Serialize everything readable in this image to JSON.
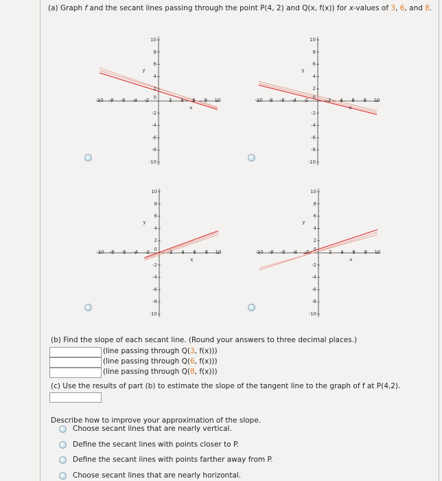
{
  "part_a": {
    "segments": [
      "(a) Graph ",
      "f",
      " and the secant lines passing through the point ",
      "P(4, 2)",
      " and ",
      "Q(x, f(x))",
      " for ",
      "x",
      "-values of ",
      "3",
      ", ",
      "6",
      ", and ",
      "8",
      "."
    ]
  },
  "graph_axes": {
    "x_ticks": [
      "-10",
      "-8",
      "-6",
      "-4",
      "-2",
      "2",
      "4",
      "6",
      "8",
      "10"
    ],
    "y_ticks": [
      "10",
      "8",
      "6",
      "4",
      "2",
      "-2",
      "-4",
      "-6",
      "-8",
      "-10"
    ],
    "origin": "0",
    "x_label": "x",
    "y_label": "y"
  },
  "part_b": {
    "title": "(b) Find the slope of each secant line. (Round your answers to three decimal places.)",
    "rows": [
      [
        "(line passing through Q(",
        "3",
        ", f(x)))"
      ],
      [
        "(line passing through Q(",
        "6",
        ", f(x)))"
      ],
      [
        "(line passing through Q(",
        "8",
        ", f(x)))"
      ]
    ]
  },
  "part_c": {
    "title": "(c) Use the results of part (b) to estimate the slope of the tangent line to the graph of f at P(4,2)."
  },
  "improve": {
    "prompt": "Describe how to improve your approximation of the slope.",
    "options": [
      "Choose secant lines that are nearly vertical.",
      "Define the secant lines with points closer to P.",
      "Define the secant lines with points farther away from P.",
      "Choose secant lines that are nearly horizontal."
    ]
  }
}
